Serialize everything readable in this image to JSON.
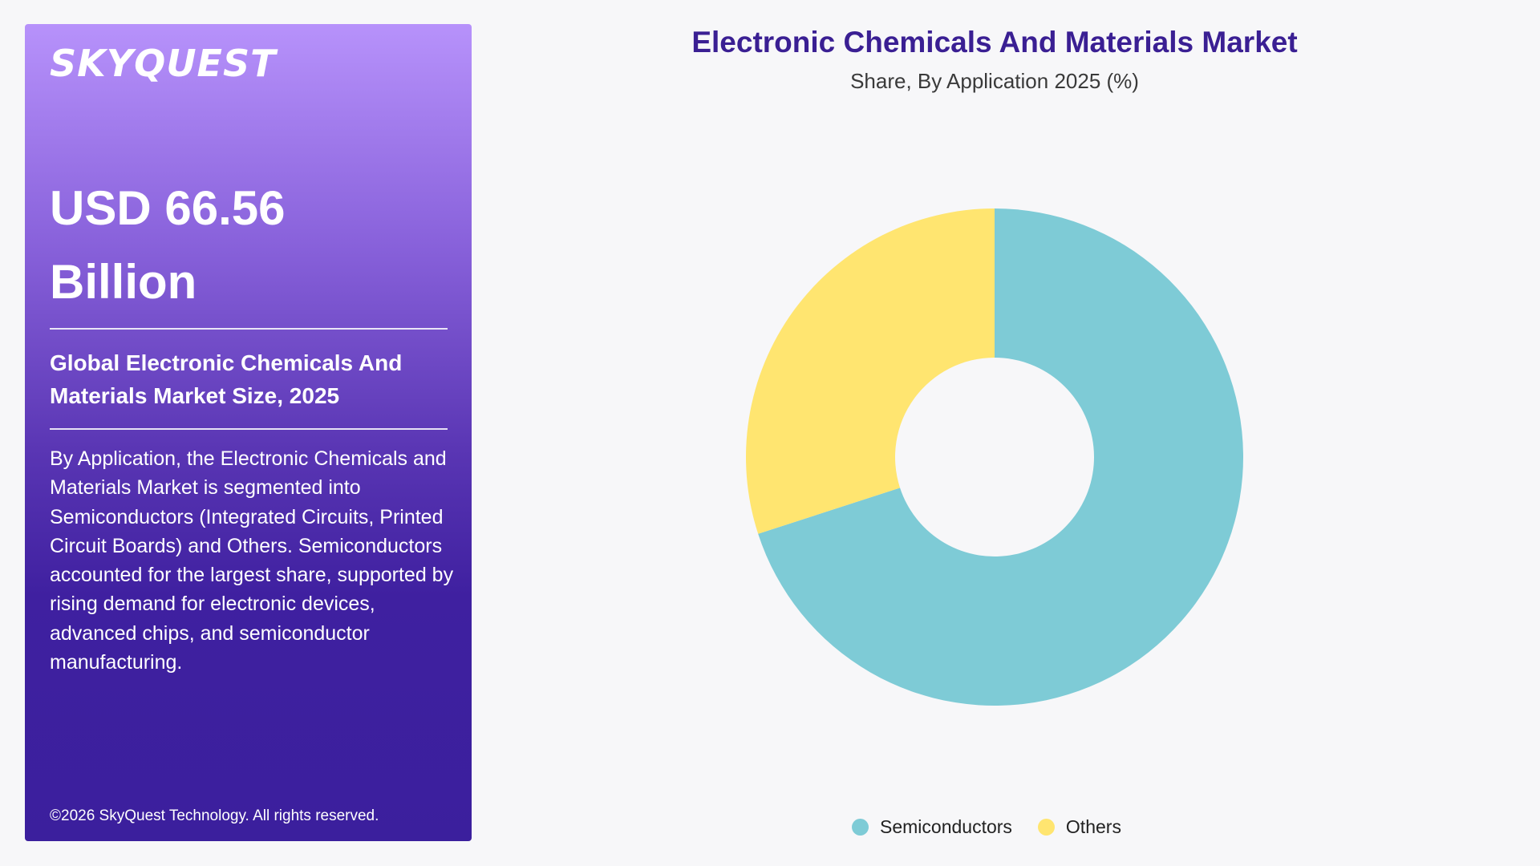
{
  "sidebar": {
    "logo": "SKYQUEST",
    "value_line1": "USD 66.56",
    "value_line2": "Billion",
    "market_size_label": "Global Electronic Chemicals And Materials Market Size, 2025",
    "description": "By Application, the Electronic Chemicals and Materials Market is segmented into Semiconductors (Integrated Circuits, Printed Circuit Boards) and Others. Semiconductors accounted for the largest share, supported by rising demand for electronic devices, advanced chips, and semiconductor manufacturing.",
    "copyright": "©2026 SkyQuest Technology. All rights reserved."
  },
  "chart_data": {
    "type": "pie",
    "title": "Electronic Chemicals And Materials Market",
    "subtitle": "Share, By Application 2025 (%)",
    "donut": true,
    "legend_position": "bottom",
    "categories": [
      "Semiconductors",
      "Others"
    ],
    "values": [
      70,
      30
    ],
    "colors": [
      "#7ecbd6",
      "#ffe570"
    ]
  }
}
